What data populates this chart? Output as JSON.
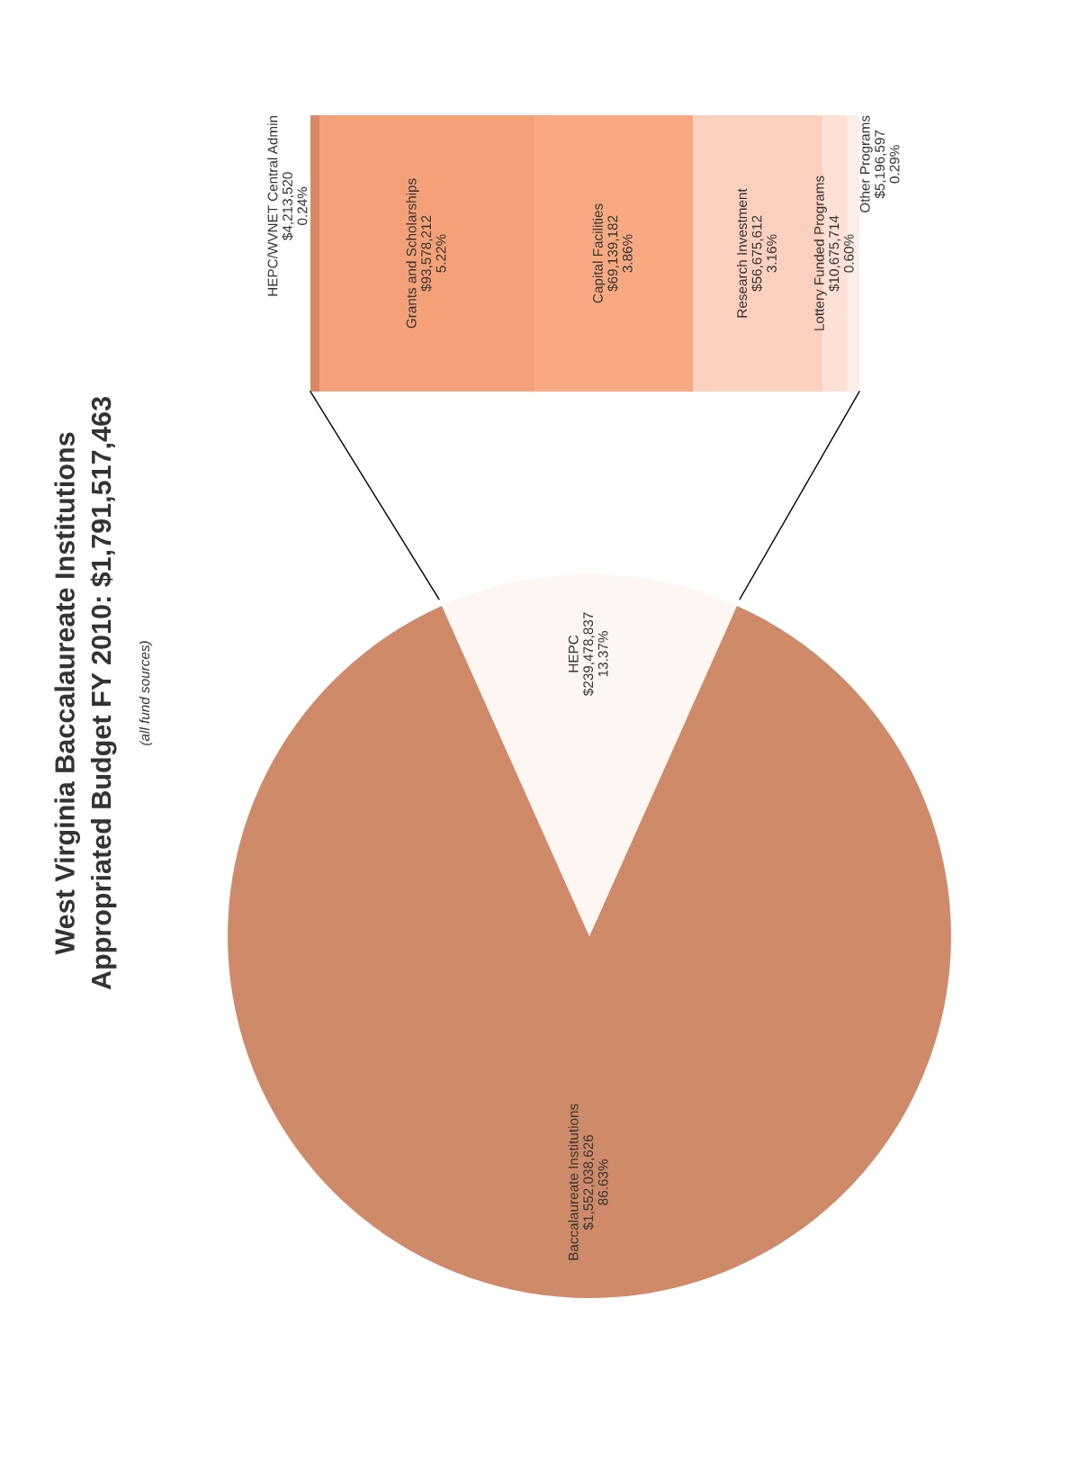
{
  "chart_data": [
    {
      "type": "pie",
      "title": "West Virginia Baccalaureate Institutions\nAppropriated Budget FY 2010: $1,791,517,463",
      "subtitle": "(all fund sources)",
      "categories": [
        "Baccalaureate Institutions",
        "HEPC"
      ],
      "values": [
        1552038626,
        239478837
      ],
      "colors": [
        "#cf8a6a",
        "#fdf6f3"
      ],
      "value_labels": [
        "$1,552,038,626\n86.63%",
        "$239,478,837\n13.37%"
      ]
    },
    {
      "type": "bar",
      "stacked": true,
      "orientation": "horizontal",
      "categories": [
        null
      ],
      "series": [
        {
          "name": "HEPC/WVNET Central Admin",
          "color": "#d98a63",
          "values": [
            4213520
          ],
          "value_labels": [
            "$4,213,520\n0.24%"
          ]
        },
        {
          "name": "Grants and Scholarships",
          "color": "#f4a17a",
          "values": [
            93578212
          ],
          "value_labels": [
            "$93,578,212\n5.22%"
          ]
        },
        {
          "name": "Capital Facilities",
          "color": "#f7a982",
          "values": [
            69139182
          ],
          "value_labels": [
            "$69,139,182\n3.86%"
          ]
        },
        {
          "name": "Research Investment",
          "color": "#fcd0bf",
          "values": [
            56675612
          ],
          "value_labels": [
            "$56,675,612\n3.16%"
          ]
        },
        {
          "name": "Lottery Funded Programs",
          "color": "#fde0d6",
          "values": [
            10675714
          ],
          "value_labels": [
            "$10,675,714\n0.60%"
          ]
        },
        {
          "name": "Other Programs",
          "color": "#feeee9",
          "values": [
            5196597
          ],
          "value_labels": [
            "$5,196,597\n0.29%"
          ]
        }
      ]
    }
  ]
}
